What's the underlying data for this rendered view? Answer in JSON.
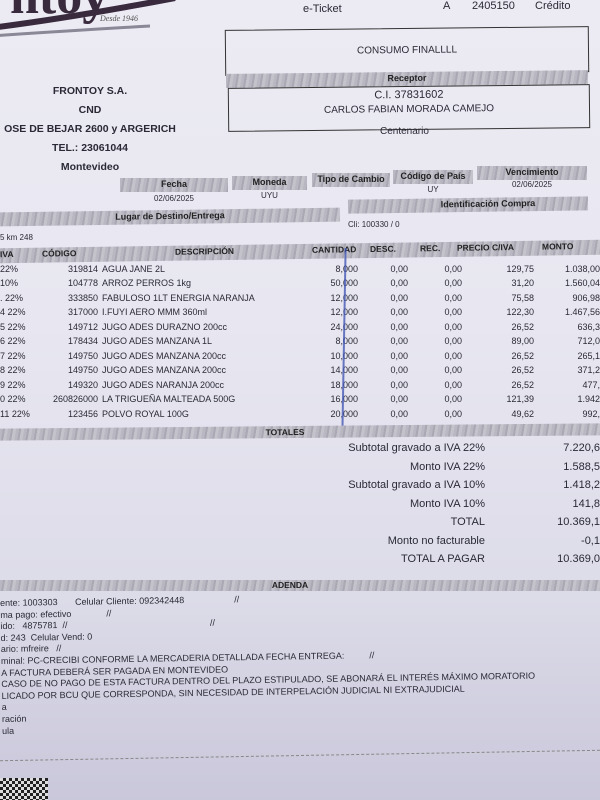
{
  "logo": {
    "text": "Frontoy",
    "tagline": "Desde 1946"
  },
  "header": {
    "doc_type": "e-Ticket",
    "series": "A",
    "number": "2405150",
    "payment": "Crédito"
  },
  "consumer_box": "CONSUMO FINALLLL",
  "receptor": {
    "label": "Receptor",
    "ci": "C.I. 37831602",
    "name": "CARLOS FABIAN MORADA CAMEJO",
    "locality": "Centenario"
  },
  "emisor": {
    "name": "FRONTOY S.A.",
    "line2": "CND",
    "address": "OSE DE BEJAR 2600 y ARGERICH",
    "phone": "TEL.: 23061044",
    "city": "Montevideo"
  },
  "meta": {
    "fecha_label": "Fecha",
    "fecha": "02/06/2025",
    "moneda_label": "Moneda",
    "moneda": "UYU",
    "tipo_cambio_label": "Tipo de Cambio",
    "pais_label": "Código de País",
    "pais": "UY",
    "vencimiento_label": "Vencimiento",
    "vencimiento": "02/06/2025",
    "destino_label": "Lugar de Destino/Entrega",
    "destino": "5 km 248",
    "ident_label": "Identificación Compra",
    "ident": "Cli: 100330 / 0"
  },
  "table": {
    "headers": {
      "iva": "IVA",
      "codigo": "CÓDIGO",
      "descripcion": "DESCRIPCIÓN",
      "cantidad": "CANTIDAD",
      "desc": "DESC.",
      "rec": "REC.",
      "precio": "PRECIO C/IVA",
      "monto": "MONTO"
    },
    "rows": [
      {
        "iva": "22%",
        "codigo": "319814",
        "descripcion": "AGUA JANE 2L",
        "cantidad": "8,000",
        "desc": "0,00",
        "rec": "0,00",
        "precio": "129,75",
        "monto": "1.038,00"
      },
      {
        "iva": "10%",
        "codigo": "104778",
        "descripcion": "ARROZ PERROS 1kg",
        "cantidad": "50,000",
        "desc": "0,00",
        "rec": "0,00",
        "precio": "31,20",
        "monto": "1.560,04"
      },
      {
        "iva": ". 22%",
        "codigo": "333850",
        "descripcion": "FABULOSO 1LT ENERGIA NARANJA",
        "cantidad": "12,000",
        "desc": "0,00",
        "rec": "0,00",
        "precio": "75,58",
        "monto": "906,98"
      },
      {
        "iva": "4 22%",
        "codigo": "317000",
        "descripcion": "I.FUYI AERO MMM 360ml",
        "cantidad": "12,000",
        "desc": "0,00",
        "rec": "0,00",
        "precio": "122,30",
        "monto": "1.467,56"
      },
      {
        "iva": "5 22%",
        "codigo": "149712",
        "descripcion": "JUGO ADES DURAZNO 200cc",
        "cantidad": "24,000",
        "desc": "0,00",
        "rec": "0,00",
        "precio": "26,52",
        "monto": "636,3"
      },
      {
        "iva": "6 22%",
        "codigo": "178434",
        "descripcion": "JUGO ADES MANZANA 1L",
        "cantidad": "8,000",
        "desc": "0,00",
        "rec": "0,00",
        "precio": "89,00",
        "monto": "712,0"
      },
      {
        "iva": "7 22%",
        "codigo": "149750",
        "descripcion": "JUGO ADES MANZANA 200cc",
        "cantidad": "10,000",
        "desc": "0,00",
        "rec": "0,00",
        "precio": "26,52",
        "monto": "265,1"
      },
      {
        "iva": "8 22%",
        "codigo": "149750",
        "descripcion": "JUGO ADES MANZANA 200cc",
        "cantidad": "14,000",
        "desc": "0,00",
        "rec": "0,00",
        "precio": "26,52",
        "monto": "371,2"
      },
      {
        "iva": "9 22%",
        "codigo": "149320",
        "descripcion": "JUGO ADES NARANJA 200cc",
        "cantidad": "18,000",
        "desc": "0,00",
        "rec": "0,00",
        "precio": "26,52",
        "monto": "477,"
      },
      {
        "iva": "0 22%",
        "codigo": "260826000",
        "descripcion": "LA TRIGUEÑA MALTEADA 500G",
        "cantidad": "16,000",
        "desc": "0,00",
        "rec": "0,00",
        "precio": "121,39",
        "monto": "1.942"
      },
      {
        "iva": "11 22%",
        "codigo": "123456",
        "descripcion": "POLVO ROYAL 100G",
        "cantidad": "20,000",
        "desc": "0,00",
        "rec": "0,00",
        "precio": "49,62",
        "monto": "992,"
      }
    ]
  },
  "totals": {
    "label": "TOTALES",
    "lines": [
      {
        "label": "Subtotal gravado a IVA 22%",
        "value": "7.220,6"
      },
      {
        "label": "Monto IVA 22%",
        "value": "1.588,5"
      },
      {
        "label": "Subtotal gravado a IVA 10%",
        "value": "1.418,2"
      },
      {
        "label": "Monto IVA 10%",
        "value": "141,8"
      },
      {
        "label": "TOTAL",
        "value": "10.369,1"
      },
      {
        "label": "Monto no facturable",
        "value": "-0,1"
      },
      {
        "label": "TOTAL A PAGAR",
        "value": "10.369,0"
      }
    ]
  },
  "adenda": {
    "label": "ADENDA",
    "lines": [
      "ente: 1003303       Celular Cliente: 092342448                    //",
      "ma pago: efectivo              //",
      "ido:   4875781  //                                                         //",
      "d: 243  Celular Vend: 0",
      "ario: mfreire   //",
      "minal: PC-CRECIBI CONFORME LA MERCADERIA DETALLADA FECHA ENTREGA:          //",
      "A FACTURA DEBERÁ SER PAGADA EN MONTEVIDEO",
      "CASO DE NO PAGO DE ESTA FACTURA DENTRO DEL PLAZO ESTIPULADO, SE ABONARÁ EL INTERÉS MÁXIMO MORATORIO",
      "LICADO POR BCU QUE CORRESPONDA, SIN NECESIDAD DE INTERPELACIÓN JUDICIAL NI EXTRAJUDICIAL",
      "a",
      "ración",
      "ula"
    ]
  }
}
